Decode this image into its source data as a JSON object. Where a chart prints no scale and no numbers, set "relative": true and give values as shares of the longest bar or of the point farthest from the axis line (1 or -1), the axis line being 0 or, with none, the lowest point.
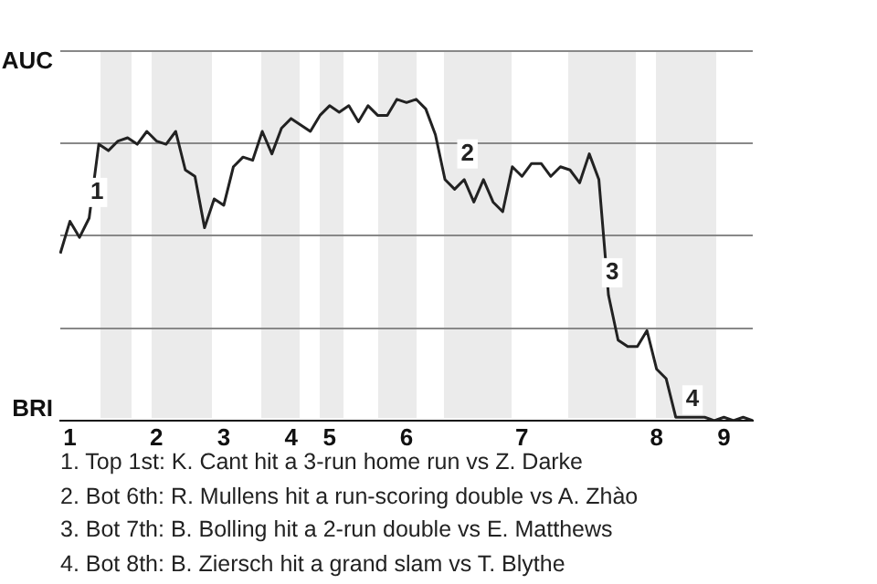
{
  "chart_data": {
    "type": "line",
    "relative": true,
    "categories": [
      null,
      "1",
      null,
      null,
      null,
      null,
      null,
      null,
      null,
      null,
      "2",
      null,
      null,
      null,
      null,
      null,
      null,
      "3",
      null,
      null,
      null,
      null,
      null,
      null,
      "4",
      null,
      null,
      null,
      "5",
      null,
      null,
      null,
      null,
      null,
      null,
      null,
      "6",
      null,
      null,
      null,
      null,
      null,
      null,
      null,
      null,
      null,
      null,
      null,
      "7",
      null,
      null,
      null,
      null,
      null,
      null,
      null,
      null,
      null,
      null,
      null,
      null,
      null,
      "8",
      null,
      null,
      null,
      null,
      null,
      null,
      "9",
      null,
      null,
      null
    ],
    "grid": "y",
    "legend": false,
    "marker": "none",
    "line_style": "solid",
    "series": [
      {
        "color": "#222222",
        "values": [
          0.52,
          0.62,
          0.57,
          0.63,
          0.86,
          0.84,
          0.87,
          0.88,
          0.86,
          0.9,
          0.87,
          0.86,
          0.9,
          0.78,
          0.76,
          0.6,
          0.69,
          0.67,
          0.79,
          0.82,
          0.81,
          0.9,
          0.83,
          0.91,
          0.94,
          0.92,
          0.9,
          0.95,
          0.98,
          0.96,
          0.98,
          0.93,
          0.98,
          0.95,
          0.95,
          1,
          0.99,
          1,
          0.97,
          0.89,
          0.75,
          0.72,
          0.75,
          0.68,
          0.75,
          0.68,
          0.65,
          0.79,
          0.76,
          0.8,
          0.8,
          0.76,
          0.79,
          0.78,
          0.74,
          0.83,
          0.75,
          0.39,
          0.25,
          0.23,
          0.23,
          0.28,
          0.16,
          0.13,
          0.01,
          0.01,
          0.01,
          0.01,
          0,
          0.01,
          0,
          0.01,
          0
        ]
      }
    ],
    "annotations": [
      "AUC",
      "BRI",
      {
        "text": "1",
        "y": 0.71
      },
      {
        "text": "2",
        "y": 0.83
      },
      {
        "text": "3",
        "y": 0.46
      },
      {
        "text": "4",
        "y": 0.03
      },
      "1. Top 1st: K. Cant hit a 3-run home run vs Z. Darke",
      "2. Bot 6th: R. Mullens hit a run-scoring double vs A. Zhào",
      "3. Bot 7th: B. Bolling hit a 2-run double vs E. Matthews",
      "4. Bot 8th: B. Ziersch hit a grand slam vs T. Blythe"
    ]
  }
}
